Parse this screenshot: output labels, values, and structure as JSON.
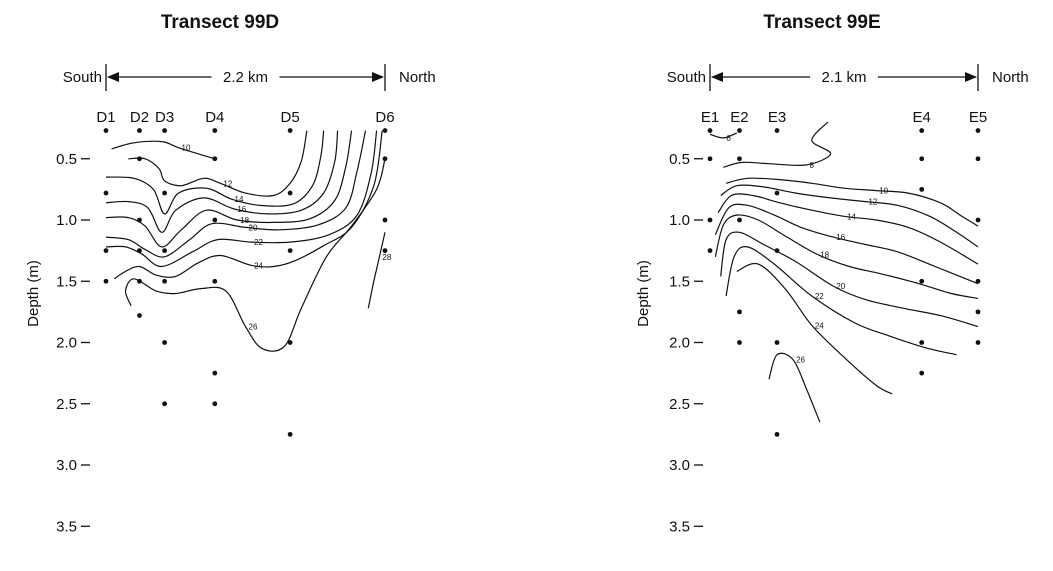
{
  "chart_data": [
    {
      "type": "contour",
      "title": "Transect 99D",
      "ylabel": "Depth (m)",
      "south_label": "South",
      "north_label": "North",
      "distance_label": "2.2 km",
      "ylim": [
        0.2,
        3.5
      ],
      "y_ticks": [
        "0.5",
        "1.0",
        "1.5",
        "2.0",
        "2.5",
        "3.0",
        "3.5"
      ],
      "stations": [
        {
          "name": "D1",
          "x": 0.0
        },
        {
          "name": "D2",
          "x": 0.12
        },
        {
          "name": "D3",
          "x": 0.21
        },
        {
          "name": "D4",
          "x": 0.39
        },
        {
          "name": "D5",
          "x": 0.66
        },
        {
          "name": "D6",
          "x": 1.0
        }
      ],
      "sample_points": [
        [
          0.0,
          0.27
        ],
        [
          0.0,
          0.78
        ],
        [
          0.0,
          1.25
        ],
        [
          0.0,
          1.5
        ],
        [
          0.12,
          0.27
        ],
        [
          0.12,
          0.5
        ],
        [
          0.12,
          1.0
        ],
        [
          0.12,
          1.25
        ],
        [
          0.12,
          1.5
        ],
        [
          0.12,
          1.78
        ],
        [
          0.21,
          0.27
        ],
        [
          0.21,
          0.78
        ],
        [
          0.21,
          1.25
        ],
        [
          0.21,
          1.5
        ],
        [
          0.21,
          2.0
        ],
        [
          0.21,
          2.5
        ],
        [
          0.39,
          0.27
        ],
        [
          0.39,
          0.5
        ],
        [
          0.39,
          1.0
        ],
        [
          0.39,
          1.5
        ],
        [
          0.39,
          2.25
        ],
        [
          0.39,
          2.5
        ],
        [
          0.66,
          0.27
        ],
        [
          0.66,
          0.78
        ],
        [
          0.66,
          1.25
        ],
        [
          0.66,
          2.0
        ],
        [
          0.66,
          2.75
        ],
        [
          1.0,
          0.27
        ],
        [
          1.0,
          0.5
        ],
        [
          1.0,
          1.0
        ],
        [
          1.0,
          1.25
        ]
      ],
      "contours": [
        {
          "label": "10",
          "points": [
            [
              0.02,
              0.42
            ],
            [
              0.1,
              0.37
            ],
            [
              0.2,
              0.36
            ],
            [
              0.26,
              0.41
            ],
            [
              0.33,
              0.46
            ],
            [
              0.39,
              0.5
            ]
          ]
        },
        {
          "label": "12",
          "points": [
            [
              0.08,
              0.5
            ],
            [
              0.14,
              0.5
            ],
            [
              0.19,
              0.58
            ],
            [
              0.21,
              0.68
            ],
            [
              0.27,
              0.72
            ],
            [
              0.35,
              0.66
            ],
            [
              0.41,
              0.7
            ],
            [
              0.5,
              0.78
            ],
            [
              0.6,
              0.8
            ],
            [
              0.66,
              0.7
            ],
            [
              0.7,
              0.52
            ],
            [
              0.72,
              0.27
            ]
          ]
        },
        {
          "label": "14",
          "points": [
            [
              0.0,
              0.65
            ],
            [
              0.1,
              0.66
            ],
            [
              0.17,
              0.75
            ],
            [
              0.21,
              0.95
            ],
            [
              0.26,
              0.78
            ],
            [
              0.36,
              0.74
            ],
            [
              0.45,
              0.83
            ],
            [
              0.55,
              0.88
            ],
            [
              0.67,
              0.87
            ],
            [
              0.74,
              0.72
            ],
            [
              0.77,
              0.48
            ],
            [
              0.78,
              0.27
            ]
          ]
        },
        {
          "label": "16",
          "points": [
            [
              0.0,
              0.86
            ],
            [
              0.08,
              0.85
            ],
            [
              0.15,
              0.9
            ],
            [
              0.2,
              1.1
            ],
            [
              0.25,
              0.92
            ],
            [
              0.35,
              0.82
            ],
            [
              0.46,
              0.91
            ],
            [
              0.58,
              0.95
            ],
            [
              0.7,
              0.92
            ],
            [
              0.78,
              0.78
            ],
            [
              0.82,
              0.52
            ],
            [
              0.83,
              0.27
            ]
          ]
        },
        {
          "label": "18",
          "points": [
            [
              0.0,
              0.98
            ],
            [
              0.08,
              0.98
            ],
            [
              0.14,
              1.05
            ],
            [
              0.2,
              1.22
            ],
            [
              0.27,
              1.08
            ],
            [
              0.36,
              0.92
            ],
            [
              0.47,
              1.0
            ],
            [
              0.6,
              1.02
            ],
            [
              0.73,
              0.99
            ],
            [
              0.82,
              0.84
            ],
            [
              0.86,
              0.56
            ],
            [
              0.88,
              0.27
            ]
          ]
        },
        {
          "label": "20",
          "points": [
            [
              0.0,
              1.14
            ],
            [
              0.08,
              1.16
            ],
            [
              0.14,
              1.24
            ],
            [
              0.21,
              1.3
            ],
            [
              0.3,
              1.16
            ],
            [
              0.38,
              1.03
            ],
            [
              0.5,
              1.06
            ],
            [
              0.62,
              1.08
            ],
            [
              0.76,
              1.04
            ],
            [
              0.86,
              0.9
            ],
            [
              0.9,
              0.6
            ],
            [
              0.93,
              0.27
            ]
          ]
        },
        {
          "label": "22",
          "points": [
            [
              0.0,
              1.22
            ],
            [
              0.07,
              1.22
            ],
            [
              0.13,
              1.28
            ],
            [
              0.2,
              1.38
            ],
            [
              0.31,
              1.26
            ],
            [
              0.4,
              1.16
            ],
            [
              0.52,
              1.18
            ],
            [
              0.66,
              1.18
            ],
            [
              0.8,
              1.12
            ],
            [
              0.9,
              0.96
            ],
            [
              0.95,
              0.62
            ],
            [
              0.97,
              0.27
            ]
          ]
        },
        {
          "label": "24",
          "points": [
            [
              0.03,
              1.48
            ],
            [
              0.07,
              1.42
            ],
            [
              0.12,
              1.38
            ],
            [
              0.18,
              1.45
            ],
            [
              0.25,
              1.46
            ],
            [
              0.33,
              1.35
            ],
            [
              0.41,
              1.29
            ],
            [
              0.52,
              1.37
            ],
            [
              0.6,
              1.38
            ],
            [
              0.68,
              1.33
            ],
            [
              0.78,
              1.21
            ],
            [
              0.88,
              1.06
            ],
            [
              0.96,
              0.72
            ],
            [
              0.99,
              0.27
            ]
          ]
        },
        {
          "label": "26",
          "points": [
            [
              0.09,
              1.7
            ],
            [
              0.07,
              1.58
            ],
            [
              0.1,
              1.48
            ],
            [
              0.18,
              1.58
            ],
            [
              0.25,
              1.6
            ],
            [
              0.34,
              1.56
            ],
            [
              0.43,
              1.58
            ],
            [
              0.5,
              1.87
            ],
            [
              0.56,
              2.05
            ],
            [
              0.64,
              2.03
            ],
            [
              0.7,
              1.72
            ],
            [
              0.79,
              1.3
            ],
            [
              0.88,
              1.05
            ],
            [
              0.97,
              0.75
            ],
            [
              1.0,
              0.5
            ]
          ]
        },
        {
          "label": "28",
          "points": [
            [
              0.94,
              1.72
            ],
            [
              0.96,
              1.5
            ],
            [
              0.98,
              1.3
            ],
            [
              1.0,
              1.1
            ]
          ]
        }
      ]
    },
    {
      "type": "contour",
      "title": "Transect 99E",
      "ylabel": "Depth (m)",
      "south_label": "South",
      "north_label": "North",
      "distance_label": "2.1 km",
      "ylim": [
        0.2,
        3.5
      ],
      "y_ticks": [
        "0.5",
        "1.0",
        "1.5",
        "2.0",
        "2.5",
        "3.0",
        "3.5"
      ],
      "stations": [
        {
          "name": "E1",
          "x": 0.0
        },
        {
          "name": "E2",
          "x": 0.11
        },
        {
          "name": "E3",
          "x": 0.25
        },
        {
          "name": "E4",
          "x": 0.79
        },
        {
          "name": "E5",
          "x": 1.0
        }
      ],
      "sample_points": [
        [
          0.0,
          0.27
        ],
        [
          0.0,
          0.5
        ],
        [
          0.0,
          1.0
        ],
        [
          0.0,
          1.25
        ],
        [
          0.11,
          0.27
        ],
        [
          0.11,
          0.5
        ],
        [
          0.11,
          1.0
        ],
        [
          0.11,
          1.75
        ],
        [
          0.11,
          2.0
        ],
        [
          0.25,
          0.27
        ],
        [
          0.25,
          0.78
        ],
        [
          0.25,
          1.25
        ],
        [
          0.25,
          2.0
        ],
        [
          0.25,
          2.75
        ],
        [
          0.79,
          0.27
        ],
        [
          0.79,
          0.5
        ],
        [
          0.79,
          0.75
        ],
        [
          0.79,
          1.5
        ],
        [
          0.79,
          2.0
        ],
        [
          0.79,
          2.25
        ],
        [
          1.0,
          0.27
        ],
        [
          1.0,
          0.5
        ],
        [
          1.0,
          1.0
        ],
        [
          1.0,
          1.5
        ],
        [
          1.0,
          1.75
        ],
        [
          1.0,
          2.0
        ]
      ],
      "contours": [
        {
          "label": "6",
          "points": [
            [
              0.0,
              0.3
            ],
            [
              0.05,
              0.33
            ],
            [
              0.1,
              0.29
            ]
          ]
        },
        {
          "label": "8",
          "points": [
            [
              0.05,
              0.57
            ],
            [
              0.12,
              0.53
            ],
            [
              0.22,
              0.54
            ],
            [
              0.36,
              0.55
            ],
            [
              0.45,
              0.46
            ],
            [
              0.38,
              0.35
            ],
            [
              0.44,
              0.2
            ]
          ]
        },
        {
          "label": "10",
          "points": [
            [
              0.06,
              0.7
            ],
            [
              0.14,
              0.66
            ],
            [
              0.26,
              0.67
            ],
            [
              0.38,
              0.7
            ],
            [
              0.5,
              0.74
            ],
            [
              0.62,
              0.76
            ],
            [
              0.74,
              0.78
            ],
            [
              0.86,
              0.86
            ],
            [
              0.94,
              0.97
            ],
            [
              1.0,
              1.05
            ]
          ]
        },
        {
          "label": "12",
          "points": [
            [
              0.04,
              0.8
            ],
            [
              0.1,
              0.72
            ],
            [
              0.2,
              0.73
            ],
            [
              0.32,
              0.78
            ],
            [
              0.45,
              0.82
            ],
            [
              0.58,
              0.85
            ],
            [
              0.7,
              0.88
            ],
            [
              0.82,
              0.97
            ],
            [
              0.92,
              1.1
            ],
            [
              1.0,
              1.22
            ]
          ]
        },
        {
          "label": "14",
          "points": [
            [
              0.03,
              0.94
            ],
            [
              0.08,
              0.8
            ],
            [
              0.16,
              0.8
            ],
            [
              0.26,
              0.86
            ],
            [
              0.38,
              0.92
            ],
            [
              0.5,
              0.97
            ],
            [
              0.62,
              1.0
            ],
            [
              0.74,
              1.06
            ],
            [
              0.86,
              1.18
            ],
            [
              1.0,
              1.36
            ]
          ]
        },
        {
          "label": "16",
          "points": [
            [
              0.02,
              1.12
            ],
            [
              0.07,
              0.9
            ],
            [
              0.14,
              0.88
            ],
            [
              0.24,
              0.96
            ],
            [
              0.34,
              1.06
            ],
            [
              0.46,
              1.14
            ],
            [
              0.58,
              1.2
            ],
            [
              0.7,
              1.26
            ],
            [
              0.84,
              1.38
            ],
            [
              1.0,
              1.52
            ]
          ]
        },
        {
          "label": "18",
          "points": [
            [
              0.02,
              1.3
            ],
            [
              0.05,
              1.04
            ],
            [
              0.1,
              0.96
            ],
            [
              0.18,
              1.0
            ],
            [
              0.28,
              1.13
            ],
            [
              0.4,
              1.28
            ],
            [
              0.52,
              1.38
            ],
            [
              0.64,
              1.44
            ],
            [
              0.78,
              1.52
            ],
            [
              0.9,
              1.6
            ],
            [
              1.0,
              1.64
            ]
          ]
        },
        {
          "label": "20",
          "points": [
            [
              0.04,
              1.46
            ],
            [
              0.06,
              1.16
            ],
            [
              0.11,
              1.1
            ],
            [
              0.2,
              1.2
            ],
            [
              0.32,
              1.34
            ],
            [
              0.46,
              1.54
            ],
            [
              0.58,
              1.65
            ],
            [
              0.72,
              1.72
            ],
            [
              0.86,
              1.78
            ],
            [
              1.0,
              1.87
            ]
          ]
        },
        {
          "label": "22",
          "points": [
            [
              0.06,
              1.62
            ],
            [
              0.09,
              1.3
            ],
            [
              0.14,
              1.22
            ],
            [
              0.24,
              1.36
            ],
            [
              0.38,
              1.62
            ],
            [
              0.54,
              1.84
            ],
            [
              0.66,
              1.94
            ],
            [
              0.8,
              2.04
            ],
            [
              0.92,
              2.1
            ]
          ]
        },
        {
          "label": "24",
          "points": [
            [
              0.1,
              1.42
            ],
            [
              0.18,
              1.36
            ],
            [
              0.28,
              1.56
            ],
            [
              0.38,
              1.86
            ],
            [
              0.5,
              2.12
            ],
            [
              0.62,
              2.35
            ],
            [
              0.68,
              2.42
            ]
          ]
        },
        {
          "label": "26",
          "points": [
            [
              0.22,
              2.3
            ],
            [
              0.25,
              2.1
            ],
            [
              0.31,
              2.14
            ],
            [
              0.36,
              2.38
            ],
            [
              0.41,
              2.65
            ]
          ]
        }
      ]
    }
  ]
}
